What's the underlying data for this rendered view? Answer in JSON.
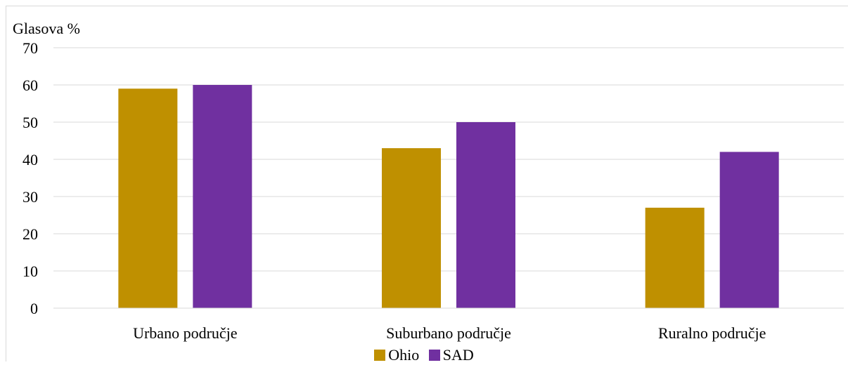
{
  "chart_data": {
    "type": "bar",
    "ylabel": "Glasova %",
    "ylim": [
      0,
      70
    ],
    "yticks": [
      0,
      10,
      20,
      30,
      40,
      50,
      60,
      70
    ],
    "grid": true,
    "legend_position": "bottom",
    "categories": [
      "Urbano područje",
      "Suburbano područje",
      "Ruralno područje"
    ],
    "series": [
      {
        "name": "Ohio",
        "color": "#bf9000",
        "values": [
          59,
          43,
          27
        ]
      },
      {
        "name": "SAD",
        "color": "#7030a0",
        "values": [
          60,
          50,
          42
        ]
      }
    ]
  }
}
